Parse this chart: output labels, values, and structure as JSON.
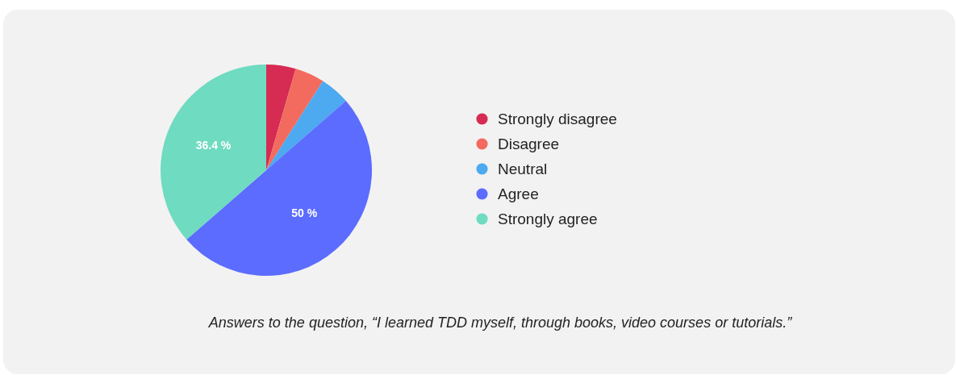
{
  "chart_data": {
    "type": "pie",
    "categories": [
      "Strongly disagree",
      "Disagree",
      "Neutral",
      "Agree",
      "Strongly agree"
    ],
    "values": [
      4.5,
      4.5,
      4.6,
      50,
      36.4
    ],
    "colors": [
      "#d62b52",
      "#f26b5e",
      "#4da9f0",
      "#5b6cff",
      "#6fdbc0"
    ],
    "value_labels": [
      null,
      null,
      null,
      "50 %",
      "36.4 %"
    ],
    "legend": "right",
    "annotations": [
      "Answers to the question, “I learned TDD myself, through books, video courses or tutorials.”"
    ]
  }
}
